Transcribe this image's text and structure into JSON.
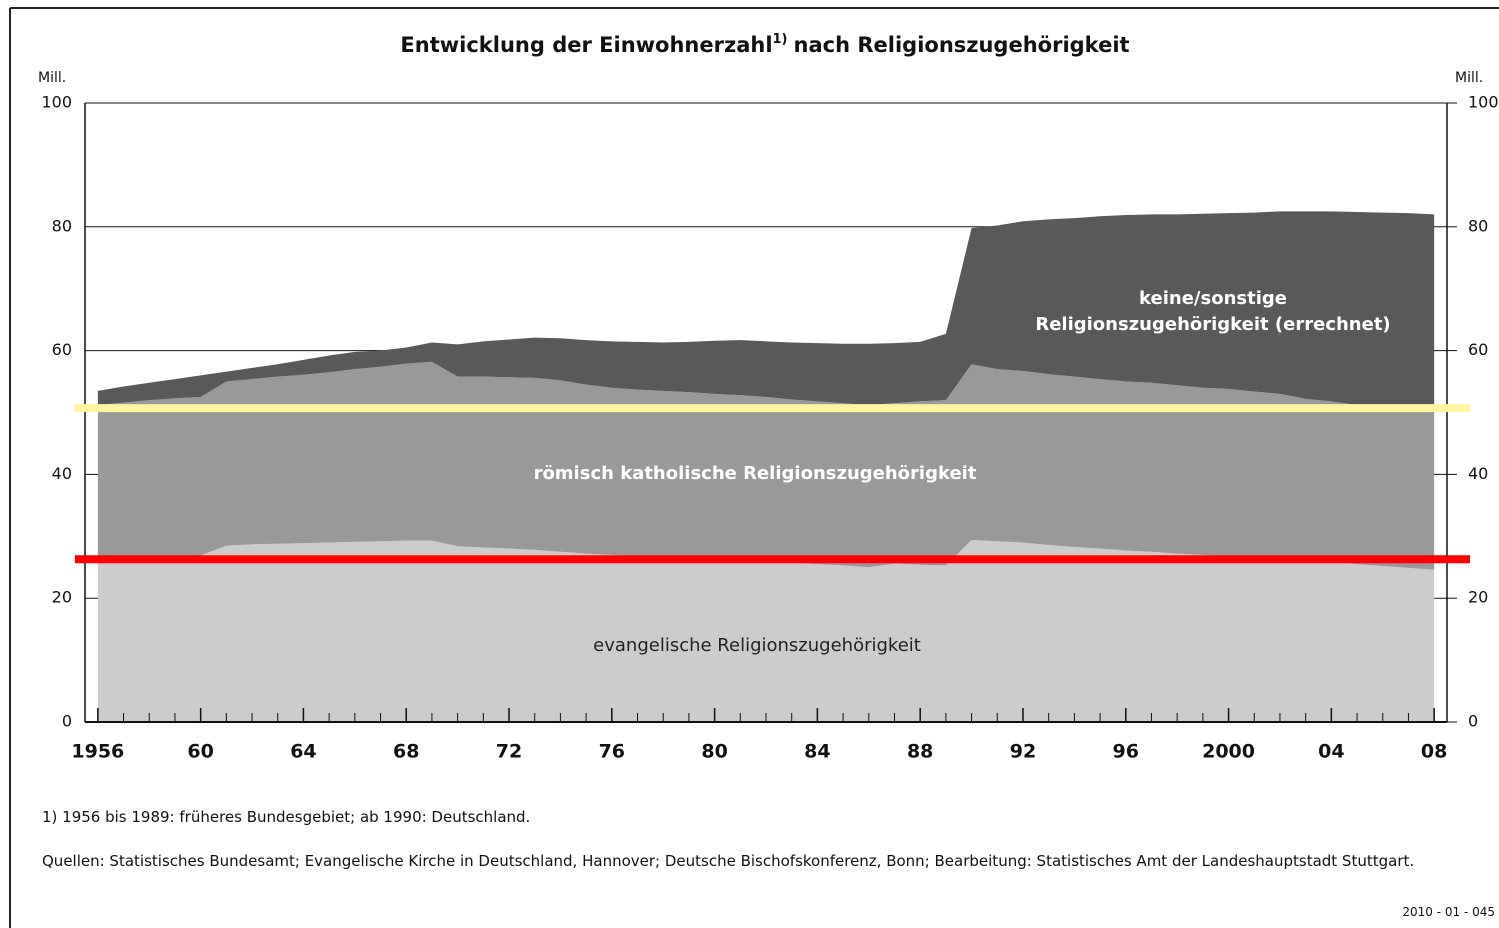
{
  "chart_data": {
    "type": "stacked_area",
    "title_main": "Entwicklung der Einwohnerzahl",
    "title_sup": "1)",
    "title_rest": "nach Religionszugehörigkeit",
    "y_unit": "Mill.",
    "y2_unit": "Mill.",
    "x": [
      1956,
      1957,
      1958,
      1959,
      1960,
      1961,
      1962,
      1963,
      1964,
      1965,
      1966,
      1967,
      1968,
      1969,
      1970,
      1971,
      1972,
      1973,
      1974,
      1975,
      1976,
      1977,
      1978,
      1979,
      1980,
      1981,
      1982,
      1983,
      1984,
      1985,
      1986,
      1987,
      1988,
      1989,
      1990,
      1991,
      1992,
      1993,
      1994,
      1995,
      1996,
      1997,
      1998,
      1999,
      2000,
      2001,
      2002,
      2003,
      2004,
      2005,
      2006,
      2007,
      2008
    ],
    "series": [
      {
        "name": "evangelische Religionszugehörigkeit",
        "color": "#cccccc",
        "values": [
          26.6,
          26.7,
          26.8,
          26.8,
          26.9,
          28.5,
          28.7,
          28.8,
          28.9,
          29.0,
          29.1,
          29.2,
          29.3,
          29.3,
          28.4,
          28.2,
          28.0,
          27.8,
          27.5,
          27.2,
          27.0,
          26.8,
          26.7,
          26.6,
          26.5,
          26.3,
          26.0,
          25.7,
          25.5,
          25.3,
          25.0,
          25.6,
          25.4,
          25.3,
          29.4,
          29.2,
          29.0,
          28.6,
          28.3,
          28.0,
          27.7,
          27.5,
          27.2,
          27.0,
          26.8,
          26.5,
          26.2,
          26.0,
          25.8,
          25.5,
          25.2,
          24.9,
          24.6
        ]
      },
      {
        "name": "römisch katholische Religionszugehörigkeit",
        "color": "#999999",
        "values": [
          24.6,
          24.9,
          25.2,
          25.5,
          25.6,
          26.5,
          26.7,
          27.0,
          27.2,
          27.5,
          27.9,
          28.2,
          28.6,
          28.9,
          27.4,
          27.6,
          27.7,
          27.8,
          27.7,
          27.3,
          27.0,
          26.9,
          26.8,
          26.7,
          26.5,
          26.5,
          26.5,
          26.4,
          26.3,
          26.2,
          26.2,
          25.9,
          26.4,
          26.7,
          28.4,
          27.8,
          27.7,
          27.6,
          27.5,
          27.4,
          27.3,
          27.3,
          27.2,
          27.0,
          27.0,
          26.9,
          26.8,
          26.2,
          26.0,
          25.7,
          25.6,
          25.4,
          25.4
        ]
      },
      {
        "name": "keine/sonstige Religionszugehörigkeit (errechnet)",
        "color": "#595959",
        "values": [
          2.3,
          2.6,
          2.8,
          3.1,
          3.5,
          1.6,
          1.8,
          2.0,
          2.4,
          2.7,
          2.8,
          2.6,
          2.6,
          3.1,
          5.2,
          5.7,
          6.1,
          6.5,
          6.8,
          7.2,
          7.5,
          7.7,
          7.8,
          8.1,
          8.6,
          8.9,
          9.0,
          9.2,
          9.4,
          9.6,
          9.9,
          9.7,
          9.6,
          10.7,
          22.0,
          23.2,
          24.2,
          25.0,
          25.6,
          26.3,
          26.9,
          27.2,
          27.6,
          28.1,
          28.4,
          28.9,
          29.5,
          30.3,
          30.7,
          31.2,
          31.5,
          31.9,
          32.0
        ]
      }
    ],
    "xlim": [
      1955.5,
      2008.5
    ],
    "xticks": [
      1956,
      {
        "value": 1960,
        "label": "60"
      },
      {
        "value": 1964,
        "label": "64"
      },
      {
        "value": 1968,
        "label": "68"
      },
      {
        "value": 1972,
        "label": "72"
      },
      {
        "value": 1976,
        "label": "76"
      },
      {
        "value": 1980,
        "label": "80"
      },
      {
        "value": 1984,
        "label": "84"
      },
      {
        "value": 1988,
        "label": "88"
      },
      {
        "value": 1992,
        "label": "92"
      },
      {
        "value": 1996,
        "label": "96"
      },
      2000,
      {
        "value": 2004,
        "label": "04"
      },
      {
        "value": 2008,
        "label": "08"
      }
    ],
    "ylim": [
      0,
      100
    ],
    "yticks": [
      0,
      20,
      40,
      60,
      80,
      100
    ],
    "y2lim": [
      0,
      100
    ],
    "y2ticks": [
      0,
      20,
      40,
      60,
      80,
      100
    ],
    "grid": true,
    "reference_lines": [
      {
        "value": 50.7,
        "color": "#fff59d"
      },
      {
        "value": 26.3,
        "color": "#ff0000"
      }
    ],
    "footnote": "1) 1956 bis 1989: früheres Bundesgebiet; ab 1990: Deutschland.",
    "source": "Quellen: Statistisches Bundesamt; Evangelische Kirche in Deutschland, Hannover; Deutsche Bischofskonferenz, Bonn; Bearbeitung: Statistisches Amt der Landeshauptstadt Stuttgart.",
    "code": "2010 - 01 - 045"
  }
}
